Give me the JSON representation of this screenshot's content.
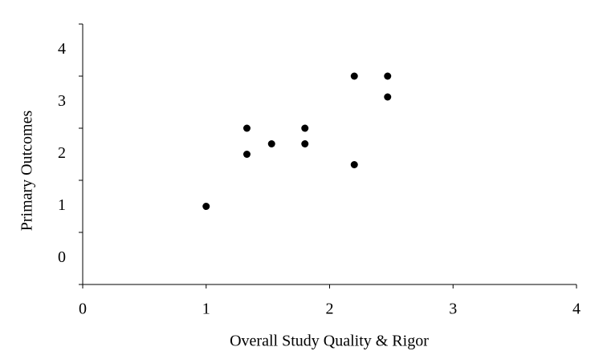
{
  "chart_data": {
    "type": "scatter",
    "x_label": "Overall Study Quality & Rigor",
    "y_label": "Primary Outcomes",
    "x": [
      1,
      1.33,
      1.33,
      1.53,
      1.8,
      1.8,
      2.2,
      2.2,
      2.47,
      2.47
    ],
    "y": [
      1,
      2,
      2.5,
      2.2,
      2.5,
      2.2,
      3.5,
      1.8,
      3.5,
      3.1
    ],
    "color": "#000000",
    "xlim": [
      0,
      4
    ],
    "xticks": [
      0,
      1,
      2,
      3,
      4
    ],
    "ylim": [
      -0.5,
      4.5
    ],
    "yticks": [
      0,
      1,
      2,
      3,
      4
    ],
    "y_tick_marks": [
      -0.5,
      0.5,
      1.5,
      2.5,
      3.5,
      4.5
    ],
    "grid": false
  }
}
